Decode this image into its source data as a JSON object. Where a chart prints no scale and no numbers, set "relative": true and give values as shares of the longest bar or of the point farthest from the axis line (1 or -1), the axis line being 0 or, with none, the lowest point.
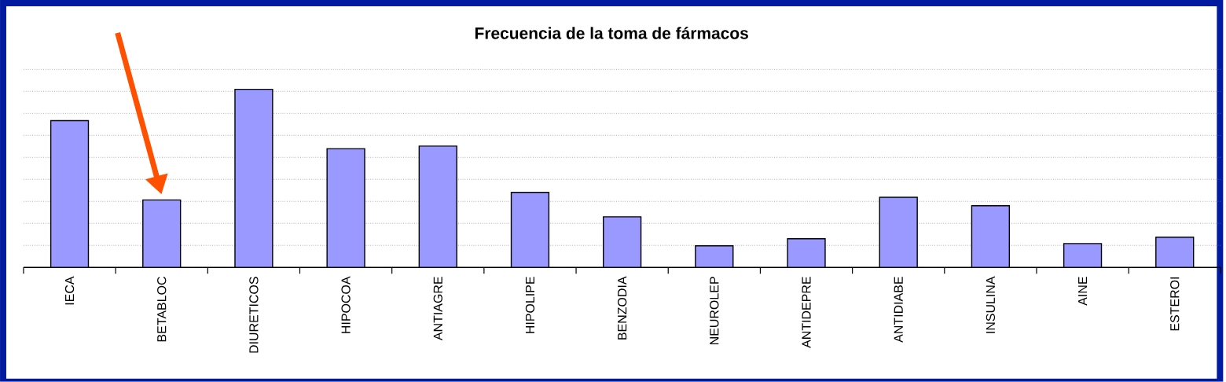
{
  "chart_data": {
    "type": "bar",
    "title": "Frecuencia de la toma de fármacos",
    "relative": true,
    "grid": "y",
    "color": "#9999ff",
    "categories": [
      "IECA",
      "BETABLOC",
      "DIURETICOS",
      "HIPOCOA",
      "ANTIAGRE",
      "HIPOLIPE",
      "BENZODIA",
      "NEUROLEP",
      "ANTIDEPRE",
      "ANTIDIABE",
      "INSULINA",
      "AINE",
      "ESTEROI"
    ],
    "values": [
      0.824,
      0.379,
      1,
      0.667,
      0.681,
      0.421,
      0.284,
      0.121,
      0.161,
      0.394,
      0.346,
      0.134,
      0.17
    ]
  }
}
